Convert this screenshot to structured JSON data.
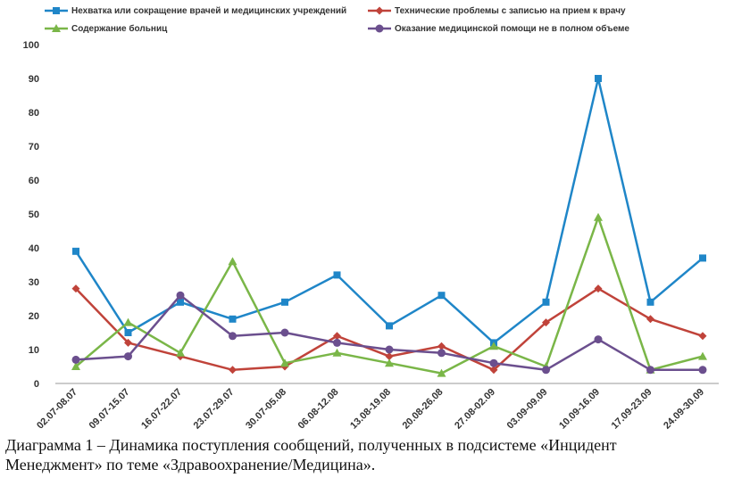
{
  "chart_data": {
    "type": "line",
    "title": "",
    "xlabel": "",
    "ylabel": "",
    "ylim": [
      0,
      100
    ],
    "yticks": [
      0,
      10,
      20,
      30,
      40,
      50,
      60,
      70,
      80,
      90,
      100
    ],
    "grid": false,
    "legend_position": "top",
    "categories": [
      "02.07-08.07",
      "09.07-15.07",
      "16.07-22.07",
      "23.07-29.07",
      "30.07-05.08",
      "06.08-12.08",
      "13.08-19.08",
      "20.08-26.08",
      "27.08-02.09",
      "03.09-09.09",
      "10.09-16.09",
      "17.09-23.09",
      "24.09-30.09"
    ],
    "series": [
      {
        "name": "Нехватка или сокращение врачей и медицинских учреждений",
        "color": "#1f86c8",
        "marker": "square",
        "values": [
          39,
          15,
          24,
          19,
          24,
          32,
          17,
          26,
          12,
          24,
          90,
          24,
          37
        ]
      },
      {
        "name": "Технические проблемы с записью на прием к врачу",
        "color": "#c0433a",
        "marker": "diamond",
        "values": [
          28,
          12,
          8,
          4,
          5,
          14,
          8,
          11,
          4,
          18,
          28,
          19,
          14
        ]
      },
      {
        "name": "Содержание больниц",
        "color": "#7ab648",
        "marker": "triangle",
        "values": [
          5,
          18,
          9,
          36,
          6,
          9,
          6,
          3,
          11,
          5,
          49,
          4,
          8
        ]
      },
      {
        "name": "Оказание медицинской помощи не в полном объеме",
        "color": "#6b4f8e",
        "marker": "circle",
        "values": [
          7,
          8,
          26,
          14,
          15,
          12,
          10,
          9,
          6,
          4,
          13,
          4,
          4
        ]
      }
    ]
  },
  "caption": {
    "line1": "Диаграмма 1 – Динамика поступления сообщений, полученных в подсистеме «Инцидент",
    "line2": "Менеджмент» по теме «Здравоохранение/Медицина»."
  }
}
